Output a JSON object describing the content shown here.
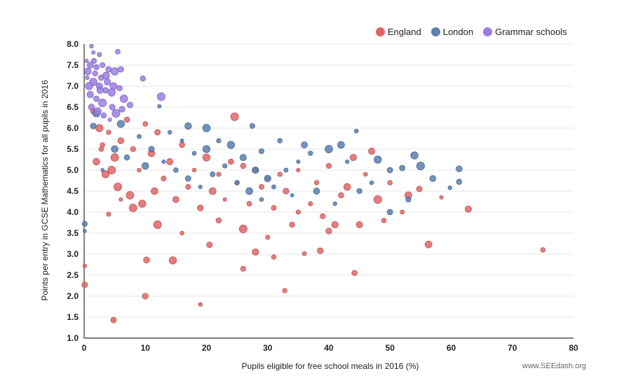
{
  "chart_data": {
    "type": "scatter",
    "xlabel": "Pupils eligible for free school meals in 2016 (%)",
    "ylabel": "Points per entry in GCSE Mathematics for all pupils in 2016",
    "xlim": [
      0,
      80
    ],
    "ylim": [
      1.0,
      8.0
    ],
    "x_ticks": [
      "0",
      "10",
      "20",
      "30",
      "40",
      "50",
      "60",
      "70",
      "80"
    ],
    "y_ticks": [
      "1.0",
      "1.5",
      "2.0",
      "2.5",
      "3.0",
      "3.5",
      "4.0",
      "4.5",
      "5.0",
      "5.5",
      "6.0",
      "6.5",
      "7.0",
      "7.5",
      "8.0"
    ],
    "grid": "horizontal",
    "legend_position": "top-right",
    "series": [
      {
        "name": "England",
        "color": "#e06666",
        "points": [
          [
            4.8,
            1.43
          ],
          [
            10.0,
            2.0
          ],
          [
            19.0,
            1.8
          ],
          [
            32.8,
            2.13
          ],
          [
            44.2,
            2.55
          ],
          [
            0.1,
            2.27
          ],
          [
            0.1,
            2.72
          ],
          [
            14.5,
            2.85
          ],
          [
            10.2,
            2.86
          ],
          [
            26.0,
            2.65
          ],
          [
            75.0,
            3.1
          ],
          [
            56.3,
            3.23
          ],
          [
            62.8,
            4.07
          ],
          [
            58.4,
            4.35
          ],
          [
            54.8,
            4.55
          ],
          [
            31.0,
            2.93
          ],
          [
            28.0,
            3.05
          ],
          [
            36.0,
            3.01
          ],
          [
            38.6,
            3.08
          ],
          [
            20.5,
            3.22
          ],
          [
            4.0,
            3.95
          ],
          [
            6.0,
            4.3
          ],
          [
            8.0,
            4.1
          ],
          [
            12.0,
            3.7
          ],
          [
            16.0,
            3.5
          ],
          [
            22.0,
            3.8
          ],
          [
            26.0,
            3.6
          ],
          [
            30.0,
            3.4
          ],
          [
            34.0,
            3.7
          ],
          [
            40.0,
            3.55
          ],
          [
            45.0,
            3.7
          ],
          [
            49.0,
            3.8
          ],
          [
            52.0,
            4.0
          ],
          [
            48.0,
            4.3
          ],
          [
            42.0,
            4.4
          ],
          [
            37.0,
            4.2
          ],
          [
            33.0,
            4.5
          ],
          [
            29.0,
            4.6
          ],
          [
            25.0,
            4.7
          ],
          [
            21.0,
            4.5
          ],
          [
            17.0,
            4.6
          ],
          [
            13.0,
            4.8
          ],
          [
            9.0,
            5.0
          ],
          [
            5.0,
            5.3
          ],
          [
            3.0,
            5.6
          ],
          [
            2.5,
            6.0
          ],
          [
            1.5,
            6.4
          ],
          [
            4.0,
            5.9
          ],
          [
            6.0,
            5.7
          ],
          [
            8.0,
            5.5
          ],
          [
            11.0,
            5.4
          ],
          [
            14.0,
            5.2
          ],
          [
            18.0,
            5.0
          ],
          [
            22.0,
            4.9
          ],
          [
            26.0,
            5.1
          ],
          [
            30.0,
            4.8
          ],
          [
            35.0,
            5.0
          ],
          [
            40.0,
            5.1
          ],
          [
            44.0,
            5.3
          ],
          [
            47.0,
            5.45
          ],
          [
            24.6,
            6.27
          ],
          [
            10.0,
            6.1
          ],
          [
            7.0,
            6.2
          ],
          [
            12.0,
            5.9
          ],
          [
            16.0,
            5.6
          ],
          [
            20.0,
            5.3
          ],
          [
            24.0,
            5.2
          ],
          [
            28.0,
            5.0
          ],
          [
            32.0,
            4.9
          ],
          [
            38.0,
            4.7
          ],
          [
            43.0,
            4.6
          ],
          [
            46.0,
            4.9
          ],
          [
            50.0,
            4.7
          ],
          [
            53.0,
            4.4
          ],
          [
            3.5,
            4.9
          ],
          [
            5.5,
            4.6
          ],
          [
            7.5,
            4.4
          ],
          [
            9.5,
            4.2
          ],
          [
            11.5,
            4.5
          ],
          [
            15.0,
            4.3
          ],
          [
            19.0,
            4.1
          ],
          [
            23.0,
            4.3
          ],
          [
            27.0,
            4.2
          ],
          [
            31.0,
            4.1
          ],
          [
            35.0,
            4.0
          ],
          [
            39.0,
            3.9
          ],
          [
            41.0,
            3.7
          ],
          [
            2.0,
            5.2
          ],
          [
            2.8,
            5.5
          ],
          [
            4.5,
            5.0
          ]
        ]
      },
      {
        "name": "London",
        "color": "#5b7fb0",
        "points": [
          [
            0.1,
            3.55
          ],
          [
            0.1,
            3.72
          ],
          [
            61.3,
            5.03
          ],
          [
            61.3,
            4.72
          ],
          [
            59.8,
            4.58
          ],
          [
            55.0,
            5.1
          ],
          [
            52.0,
            5.05
          ],
          [
            54.0,
            5.35
          ],
          [
            57.0,
            4.8
          ],
          [
            50.0,
            5.0
          ],
          [
            44.5,
            5.93
          ],
          [
            42.0,
            5.6
          ],
          [
            40.0,
            5.5
          ],
          [
            37.0,
            5.4
          ],
          [
            35.0,
            5.2
          ],
          [
            33.0,
            5.0
          ],
          [
            30.0,
            4.8
          ],
          [
            28.0,
            5.0
          ],
          [
            26.0,
            5.3
          ],
          [
            24.0,
            5.6
          ],
          [
            22.0,
            5.7
          ],
          [
            20.0,
            5.5
          ],
          [
            18.0,
            5.4
          ],
          [
            16.0,
            5.7
          ],
          [
            14.0,
            5.9
          ],
          [
            12.3,
            6.52
          ],
          [
            1.5,
            6.05
          ],
          [
            2.0,
            6.35
          ],
          [
            6.0,
            6.1
          ],
          [
            9.0,
            5.8
          ],
          [
            11.0,
            5.5
          ],
          [
            13.0,
            5.2
          ],
          [
            15.0,
            5.0
          ],
          [
            17.0,
            4.8
          ],
          [
            19.0,
            4.6
          ],
          [
            21.0,
            4.9
          ],
          [
            23.0,
            5.1
          ],
          [
            25.0,
            4.7
          ],
          [
            27.0,
            4.5
          ],
          [
            29.0,
            4.3
          ],
          [
            31.0,
            4.6
          ],
          [
            34.0,
            4.4
          ],
          [
            38.0,
            4.5
          ],
          [
            41.0,
            4.2
          ],
          [
            45.0,
            4.5
          ],
          [
            47.0,
            4.7
          ],
          [
            50.0,
            4.0
          ],
          [
            53.0,
            4.3
          ],
          [
            3.0,
            5.0
          ],
          [
            5.0,
            5.5
          ],
          [
            7.0,
            5.3
          ],
          [
            10.0,
            5.1
          ],
          [
            27.5,
            6.05
          ],
          [
            20.0,
            6.0
          ],
          [
            17.0,
            6.05
          ],
          [
            36.0,
            5.6
          ],
          [
            32.0,
            5.7
          ],
          [
            29.0,
            5.45
          ],
          [
            43.0,
            5.2
          ],
          [
            48.0,
            5.25
          ]
        ]
      },
      {
        "name": "Grammar schools",
        "color": "#9b7ede",
        "points": [
          [
            1.2,
            7.95
          ],
          [
            1.5,
            7.8
          ],
          [
            2.5,
            7.75
          ],
          [
            5.5,
            7.82
          ],
          [
            0.4,
            7.6
          ],
          [
            1.0,
            7.5
          ],
          [
            2.0,
            7.45
          ],
          [
            3.0,
            7.5
          ],
          [
            4.0,
            7.4
          ],
          [
            5.0,
            7.35
          ],
          [
            6.0,
            7.4
          ],
          [
            9.6,
            7.18
          ],
          [
            0.5,
            7.2
          ],
          [
            1.5,
            7.1
          ],
          [
            2.5,
            7.0
          ],
          [
            3.5,
            6.9
          ],
          [
            4.5,
            6.85
          ],
          [
            1.0,
            6.8
          ],
          [
            2.0,
            6.7
          ],
          [
            3.0,
            6.6
          ],
          [
            0.8,
            7.0
          ],
          [
            1.8,
            7.3
          ],
          [
            2.8,
            7.2
          ],
          [
            3.8,
            7.1
          ],
          [
            4.8,
            7.0
          ],
          [
            6.5,
            6.7
          ],
          [
            7.5,
            6.55
          ],
          [
            12.6,
            6.75
          ],
          [
            1.2,
            6.5
          ],
          [
            2.2,
            6.4
          ],
          [
            3.2,
            6.3
          ],
          [
            4.2,
            6.2
          ],
          [
            5.2,
            6.35
          ],
          [
            6.2,
            6.45
          ],
          [
            2.6,
            6.9
          ],
          [
            1.6,
            7.6
          ],
          [
            0.6,
            7.35
          ],
          [
            3.6,
            7.25
          ],
          [
            4.6,
            6.5
          ],
          [
            5.8,
            6.95
          ]
        ]
      }
    ]
  },
  "legend": {
    "items": [
      {
        "label": "England",
        "color": "#e06666"
      },
      {
        "label": "London",
        "color": "#5b7fb0"
      },
      {
        "label": "Grammar schools",
        "color": "#9b7ede"
      }
    ]
  },
  "credit": "www.SEEdash.org"
}
